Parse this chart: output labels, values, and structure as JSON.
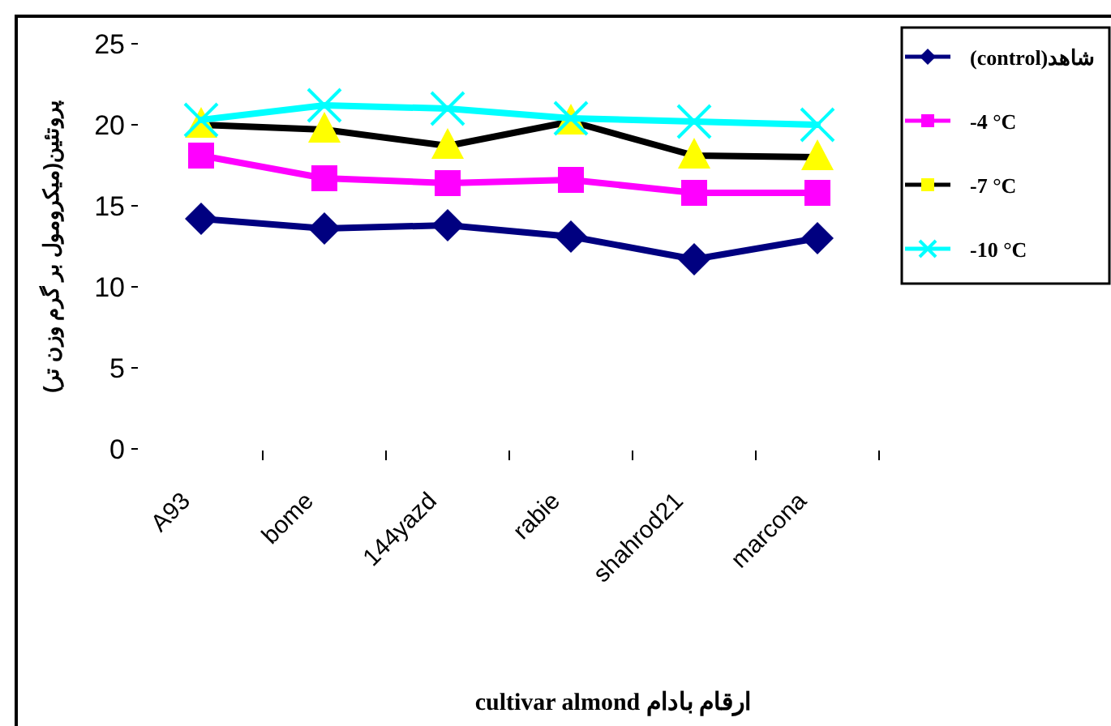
{
  "chart_data": {
    "type": "line",
    "xlabel": "cultivar almond ارقام بادام",
    "ylabel": "پروتئین(میکرومول بر گرم وزن تر)",
    "categories": [
      "A93",
      "bome",
      "144yazd",
      "rabie",
      "shahrod21",
      "marcona"
    ],
    "ylim": [
      0,
      25
    ],
    "yticks": [
      0,
      5,
      10,
      15,
      20,
      25
    ],
    "grid": false,
    "legend": "top right",
    "series": [
      {
        "name": "(control)شاهد",
        "color": "#000080",
        "marker": "diamond",
        "values": [
          14.2,
          13.6,
          13.8,
          13.1,
          11.7,
          13.0
        ]
      },
      {
        "name": "-4 °C",
        "color": "#ff00ff",
        "marker": "square",
        "values": [
          18.1,
          16.7,
          16.4,
          16.6,
          15.8,
          15.8
        ]
      },
      {
        "name": "-7 °C",
        "color": "#000000",
        "colors": [
          "#ffff00",
          "#ffff00",
          "#ffff00",
          "#ffff00",
          "#ffff00",
          "#ffff00"
        ],
        "marker": "triangle",
        "values": [
          20.0,
          19.7,
          18.7,
          20.2,
          18.1,
          18.0
        ]
      },
      {
        "name": "-10 °C",
        "color": "#00ffff",
        "marker": "cross",
        "values": [
          20.3,
          21.2,
          21.0,
          20.4,
          20.2,
          20.0
        ]
      }
    ]
  }
}
